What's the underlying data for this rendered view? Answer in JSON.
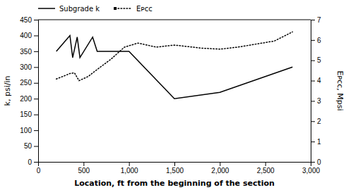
{
  "chart_data": {
    "type": "line",
    "x_label": "Location, ft from the beginning of the section",
    "y_label": "k, psi/in",
    "y2_label": "Eᴘᴄᴄ, Mpsi",
    "xlim": [
      0,
      3000
    ],
    "xticks": [
      0,
      500,
      {
        "value": 1000,
        "label": "1,000"
      },
      {
        "value": 1500,
        "label": "1,500"
      },
      {
        "value": 2000,
        "label": "2,000"
      },
      {
        "value": 2500,
        "label": "2,500"
      },
      {
        "value": 3000,
        "label": "3,000"
      }
    ],
    "ylim": [
      0,
      450
    ],
    "yticks": [
      0,
      50,
      100,
      150,
      200,
      250,
      300,
      350,
      400,
      450
    ],
    "y2lim": [
      0,
      7
    ],
    "y2ticks": [
      0,
      1,
      2,
      3,
      4,
      5,
      6,
      7
    ],
    "grid": false,
    "legend": "top",
    "series": [
      {
        "name": "Subgrade k",
        "color": "#000000",
        "line_style": "solid",
        "x": [
          200,
          350,
          380,
          430,
          460,
          600,
          650,
          1000,
          1500,
          2000,
          2800
        ],
        "values": [
          350,
          400,
          330,
          395,
          330,
          395,
          350,
          350,
          200,
          220,
          300
        ]
      },
      {
        "name": "Eᴘᴄᴄ",
        "color": "#000000",
        "line_style": "dotted",
        "axis": "y2",
        "x": [
          200,
          280,
          350,
          400,
          450,
          550,
          650,
          800,
          950,
          1100,
          1300,
          1500,
          1800,
          2000,
          2200,
          2400,
          2600,
          2800
        ],
        "values": [
          4.08,
          4.22,
          4.35,
          4.38,
          4.0,
          4.2,
          4.55,
          5.05,
          5.65,
          5.85,
          5.65,
          5.75,
          5.6,
          5.55,
          5.65,
          5.8,
          5.95,
          6.4
        ]
      }
    ]
  }
}
